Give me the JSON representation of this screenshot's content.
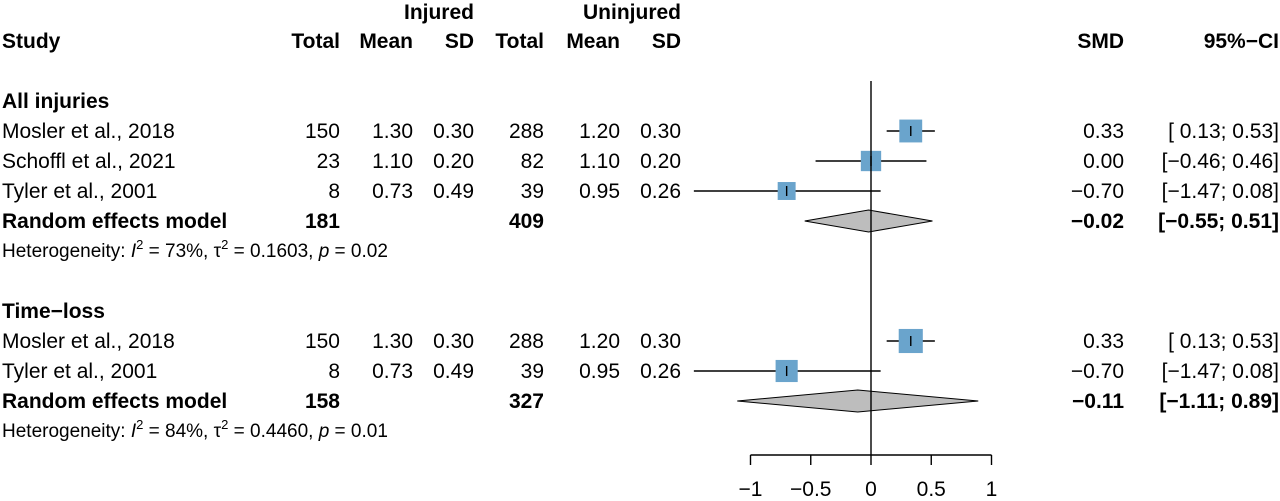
{
  "chart_data": {
    "type": "forest",
    "headers": {
      "group_injured": "Injured",
      "group_uninjured": "Uninjured",
      "study": "Study",
      "total": "Total",
      "mean": "Mean",
      "sd": "SD",
      "smd": "SMD",
      "ci": "95%−CI"
    },
    "x_ticks": [
      -1,
      -0.5,
      0,
      0.5,
      1
    ],
    "x_tick_labels": [
      "−1",
      "−0.5",
      "0",
      "0.5",
      "1"
    ],
    "xlim": [
      -1,
      1
    ],
    "reference_line": 0,
    "subgroups": [
      {
        "name": "All injuries",
        "studies": [
          {
            "study": "Mosler et al., 2018",
            "inj_total": "150",
            "inj_mean": "1.30",
            "inj_sd": "0.30",
            "uninj_total": "288",
            "uninj_mean": "1.20",
            "uninj_sd": "0.30",
            "smd": 0.33,
            "lower": 0.13,
            "upper": 0.53,
            "smd_text": "0.33",
            "ci_text": "[ 0.13; 0.53]",
            "weight": 48
          },
          {
            "study": "Schoffl et al., 2021",
            "inj_total": "23",
            "inj_mean": "1.10",
            "inj_sd": "0.20",
            "uninj_total": "82",
            "uninj_mean": "1.10",
            "uninj_sd": "0.20",
            "smd": 0.0,
            "lower": -0.46,
            "upper": 0.46,
            "smd_text": "0.00",
            "ci_text": "[−0.46; 0.46]",
            "weight": 32
          },
          {
            "study": "Tyler et al., 2001",
            "inj_total": "8",
            "inj_mean": "0.73",
            "inj_sd": "0.49",
            "uninj_total": "39",
            "uninj_mean": "0.95",
            "uninj_sd": "0.26",
            "smd": -0.7,
            "lower": -1.47,
            "upper": 0.08,
            "smd_text": "−0.70",
            "ci_text": "[−1.47; 0.08]",
            "weight": 20
          }
        ],
        "model": {
          "label": "Random effects model",
          "inj_total": "181",
          "uninj_total": "409",
          "smd": -0.02,
          "lower": -0.55,
          "upper": 0.51,
          "smd_text": "−0.02",
          "ci_text": "[−0.55; 0.51]"
        },
        "heterogeneity": {
          "prefix": "Heterogeneity: ",
          "i2_sym": "I",
          "sup": "2",
          "i2_val": " = 73%, ",
          "tau_sym": "τ",
          "tau_val": " = 0.1603, ",
          "p_sym": "p",
          "p_val": " = 0.02"
        }
      },
      {
        "name": "Time−loss",
        "studies": [
          {
            "study": "Mosler et al., 2018",
            "inj_total": "150",
            "inj_mean": "1.30",
            "inj_sd": "0.30",
            "uninj_total": "288",
            "uninj_mean": "1.20",
            "uninj_sd": "0.30",
            "smd": 0.33,
            "lower": 0.13,
            "upper": 0.53,
            "smd_text": "0.33",
            "ci_text": "[ 0.13; 0.53]",
            "weight": 57
          },
          {
            "study": "Tyler et al., 2001",
            "inj_total": "8",
            "inj_mean": "0.73",
            "inj_sd": "0.49",
            "uninj_total": "39",
            "uninj_mean": "0.95",
            "uninj_sd": "0.26",
            "smd": -0.7,
            "lower": -1.47,
            "upper": 0.08,
            "smd_text": "−0.70",
            "ci_text": "[−1.47; 0.08]",
            "weight": 43
          }
        ],
        "model": {
          "label": "Random effects model",
          "inj_total": "158",
          "uninj_total": "327",
          "smd": -0.11,
          "lower": -1.11,
          "upper": 0.89,
          "smd_text": "−0.11",
          "ci_text": "[−1.11; 0.89]"
        },
        "heterogeneity": {
          "prefix": "Heterogeneity: ",
          "i2_sym": "I",
          "sup": "2",
          "i2_val": " = 84%, ",
          "tau_sym": "τ",
          "tau_val": " = 0.4460, ",
          "p_sym": "p",
          "p_val": " = 0.01"
        }
      }
    ],
    "colors": {
      "square": "#6aa4cc",
      "diamond": "#bdbdbd",
      "line": "#000000"
    }
  }
}
